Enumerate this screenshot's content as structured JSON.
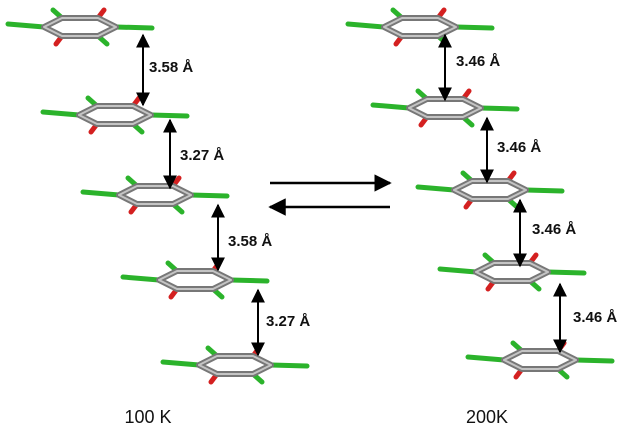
{
  "panels": [
    {
      "caption": "100 K",
      "distances": [
        "3.58 Å",
        "3.27 Å",
        "3.58 Å",
        "3.27 Å"
      ]
    },
    {
      "caption": "200K",
      "distances": [
        "3.46 Å",
        "3.46 Å",
        "3.46 Å",
        "3.46 Å"
      ]
    }
  ]
}
